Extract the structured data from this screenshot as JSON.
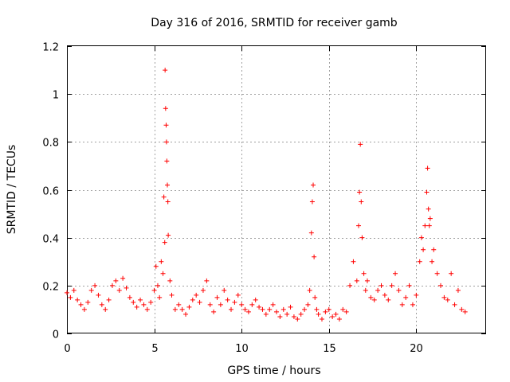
{
  "chart_data": {
    "type": "scatter",
    "title": "Day 316 of 2016, SRMTID for receiver gamb",
    "xlabel": "GPS time / hours",
    "ylabel": "SRMTID / TECUs",
    "xlim": [
      0,
      24
    ],
    "ylim": [
      0,
      1.2
    ],
    "xticks": [
      0,
      5,
      10,
      15,
      20
    ],
    "xtick_labels": [
      "0",
      "5",
      "10",
      "15",
      "20"
    ],
    "yticks": [
      0,
      0.2,
      0.4,
      0.6,
      0.8,
      1.0,
      1.2
    ],
    "ytick_labels": [
      "0",
      "0.2",
      "0.4",
      "0.6",
      "0.8",
      "1",
      "1.2"
    ],
    "grid": true,
    "marker": "+",
    "color": "#ff0000",
    "series": [
      {
        "name": "gamb",
        "x": [
          0.0,
          0.2,
          0.4,
          0.6,
          0.8,
          1.0,
          1.2,
          1.4,
          1.6,
          1.8,
          2.0,
          2.2,
          2.4,
          2.6,
          2.8,
          3.0,
          3.2,
          3.4,
          3.6,
          3.8,
          4.0,
          4.2,
          4.4,
          4.6,
          4.8,
          5.0,
          5.1,
          5.2,
          5.3,
          5.4,
          5.5,
          5.55,
          5.6,
          5.62,
          5.65,
          5.68,
          5.7,
          5.72,
          5.75,
          5.78,
          5.8,
          5.9,
          6.0,
          6.2,
          6.4,
          6.6,
          6.8,
          7.0,
          7.2,
          7.4,
          7.6,
          7.8,
          8.0,
          8.2,
          8.4,
          8.6,
          8.8,
          9.0,
          9.2,
          9.4,
          9.6,
          9.8,
          10.0,
          10.2,
          10.4,
          10.6,
          10.8,
          11.0,
          11.2,
          11.4,
          11.6,
          11.8,
          12.0,
          12.2,
          12.4,
          12.6,
          12.8,
          13.0,
          13.2,
          13.4,
          13.6,
          13.8,
          13.9,
          14.0,
          14.05,
          14.1,
          14.15,
          14.2,
          14.3,
          14.4,
          14.6,
          14.8,
          15.0,
          15.2,
          15.4,
          15.6,
          15.8,
          16.0,
          16.2,
          16.4,
          16.6,
          16.7,
          16.75,
          16.8,
          16.85,
          16.9,
          17.0,
          17.1,
          17.2,
          17.4,
          17.6,
          17.8,
          18.0,
          18.2,
          18.4,
          18.6,
          18.8,
          19.0,
          19.2,
          19.4,
          19.6,
          19.8,
          20.0,
          20.2,
          20.3,
          20.4,
          20.5,
          20.6,
          20.65,
          20.7,
          20.75,
          20.8,
          20.9,
          21.0,
          21.2,
          21.4,
          21.6,
          21.8,
          22.0,
          22.2,
          22.4,
          22.6,
          22.8
        ],
        "y": [
          0.17,
          0.15,
          0.18,
          0.14,
          0.12,
          0.1,
          0.13,
          0.18,
          0.2,
          0.16,
          0.12,
          0.1,
          0.14,
          0.2,
          0.22,
          0.18,
          0.23,
          0.19,
          0.15,
          0.13,
          0.11,
          0.14,
          0.12,
          0.1,
          0.13,
          0.18,
          0.28,
          0.2,
          0.15,
          0.3,
          0.25,
          0.57,
          0.38,
          1.1,
          0.94,
          0.87,
          0.8,
          0.72,
          0.62,
          0.55,
          0.41,
          0.22,
          0.16,
          0.1,
          0.12,
          0.1,
          0.08,
          0.11,
          0.14,
          0.16,
          0.13,
          0.18,
          0.22,
          0.12,
          0.09,
          0.15,
          0.12,
          0.18,
          0.14,
          0.1,
          0.13,
          0.16,
          0.12,
          0.1,
          0.09,
          0.12,
          0.14,
          0.11,
          0.1,
          0.08,
          0.1,
          0.12,
          0.09,
          0.07,
          0.1,
          0.08,
          0.11,
          0.07,
          0.06,
          0.08,
          0.1,
          0.12,
          0.18,
          0.42,
          0.55,
          0.62,
          0.32,
          0.15,
          0.1,
          0.08,
          0.06,
          0.09,
          0.1,
          0.07,
          0.08,
          0.06,
          0.1,
          0.09,
          0.2,
          0.3,
          0.22,
          0.45,
          0.59,
          0.79,
          0.55,
          0.4,
          0.25,
          0.18,
          0.22,
          0.15,
          0.14,
          0.18,
          0.2,
          0.16,
          0.14,
          0.2,
          0.25,
          0.18,
          0.12,
          0.15,
          0.2,
          0.12,
          0.16,
          0.3,
          0.4,
          0.35,
          0.45,
          0.59,
          0.69,
          0.52,
          0.45,
          0.48,
          0.3,
          0.35,
          0.25,
          0.2,
          0.15,
          0.14,
          0.25,
          0.12,
          0.18,
          0.1,
          0.09
        ]
      }
    ]
  }
}
